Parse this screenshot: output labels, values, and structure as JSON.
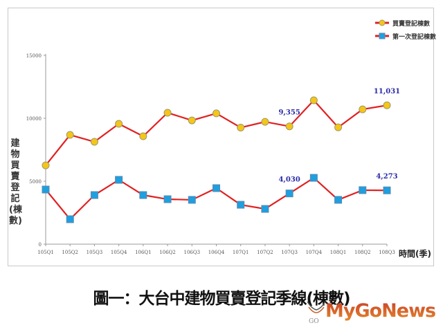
{
  "chart_data": {
    "type": "line",
    "title": "圖一：大台中建物買賣登記季線(棟數)",
    "xlabel": "時間(季)",
    "ylabel": "建物買賣登記(棟數)",
    "ylim": [
      0,
      15000
    ],
    "yticks": [
      "0",
      "5000",
      "10000",
      "15000"
    ],
    "grid": false,
    "legend_position": "top-right",
    "categories": [
      "105Q1",
      "105Q2",
      "105Q3",
      "105Q4",
      "106Q1",
      "106Q2",
      "106Q3",
      "106Q4",
      "107Q1",
      "107Q2",
      "107Q3",
      "107Q4",
      "108Q1",
      "108Q2",
      "108Q3"
    ],
    "series": [
      {
        "name": "買賣登記棟數",
        "color": "#e02020",
        "marker": "circle",
        "marker_color": "#f5c518",
        "values": [
          6260,
          8680,
          8130,
          9560,
          8570,
          10440,
          9830,
          10390,
          9260,
          9720,
          9355,
          11430,
          9280,
          10710,
          11031
        ]
      },
      {
        "name": "第一次登記棟數",
        "color": "#e02020",
        "marker": "square",
        "marker_color": "#1e9fe0",
        "values": [
          4340,
          1980,
          3900,
          5110,
          3900,
          3570,
          3520,
          4450,
          3130,
          2800,
          4030,
          5270,
          3520,
          4290,
          4273
        ]
      }
    ],
    "annotations": [
      {
        "series": 0,
        "index": 10,
        "text": "9,355"
      },
      {
        "series": 0,
        "index": 14,
        "text": "11,031"
      },
      {
        "series": 1,
        "index": 10,
        "text": "4,030"
      },
      {
        "series": 1,
        "index": 14,
        "text": "4,273"
      }
    ]
  },
  "legend": {
    "items": [
      {
        "label": "買賣登記棟數"
      },
      {
        "label": "第一次登記棟數"
      }
    ]
  },
  "caption": "圖一：大台中建物買賣登記季線(棟數)",
  "watermark": {
    "brand": "MyGoNews",
    "sub": "GO"
  }
}
